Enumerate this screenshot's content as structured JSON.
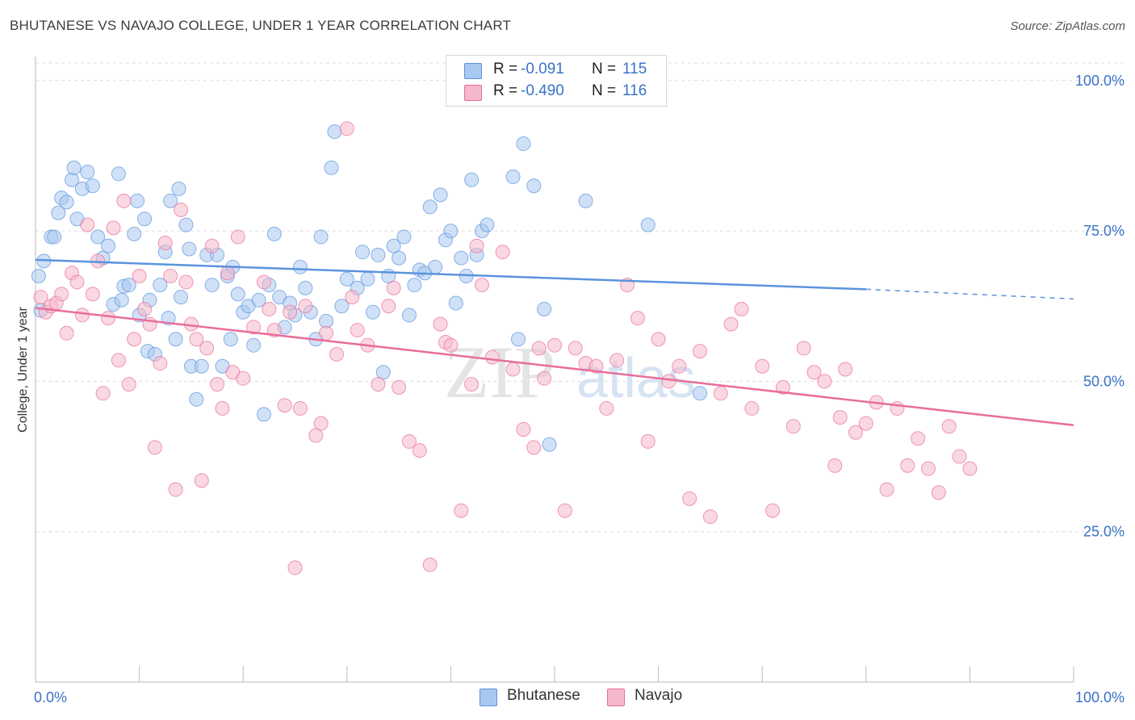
{
  "header": {
    "title": "BHUTANESE VS NAVAJO COLLEGE, UNDER 1 YEAR CORRELATION CHART",
    "source": "Source: ZipAtlas.com"
  },
  "watermark": {
    "part1": "ZIP",
    "part2": "atlas"
  },
  "legend": {
    "rows": [
      {
        "r_label": "R =",
        "r_value": "-0.091",
        "n_label": "N =",
        "n_value": "115",
        "color": "#a9c8f0"
      },
      {
        "r_label": "R =",
        "r_value": "-0.490",
        "n_label": "N =",
        "n_value": "116",
        "color": "#f5b8cb"
      }
    ]
  },
  "bottom_legend": {
    "items": [
      {
        "label": "Bhutanese",
        "color": "#a9c8f0"
      },
      {
        "label": "Navajo",
        "color": "#f5b8cb"
      }
    ]
  },
  "chart_data": {
    "type": "scatter",
    "title": "BHUTANESE VS NAVAJO COLLEGE, UNDER 1 YEAR CORRELATION CHART",
    "xlabel": "",
    "ylabel": "College, Under 1 year",
    "xlim": [
      0,
      100
    ],
    "ylim": [
      0,
      104
    ],
    "x_tick_labels": [
      "0.0%",
      "100.0%"
    ],
    "y_ticks": [
      25,
      50,
      75,
      100
    ],
    "y_tick_labels": [
      "25.0%",
      "50.0%",
      "75.0%",
      "100.0%"
    ],
    "grid": "dashed horizontal",
    "legend_position": "top-center",
    "series": [
      {
        "name": "Bhutanese",
        "color": "#5b93dd",
        "fill": "#a9c8f0",
        "trend": {
          "x0": 0,
          "y0": 70.2,
          "x1": 80,
          "y1": 65.3,
          "dashed_to": 100,
          "dashed_y": 63.7
        },
        "points": [
          [
            0.3,
            67.5
          ],
          [
            0.5,
            61.8
          ],
          [
            0.8,
            70
          ],
          [
            1.5,
            74
          ],
          [
            1.8,
            74
          ],
          [
            2.2,
            78
          ],
          [
            2.5,
            80.5
          ],
          [
            3,
            79.8
          ],
          [
            3.5,
            83.5
          ],
          [
            3.7,
            85.5
          ],
          [
            4,
            77
          ],
          [
            4.5,
            82
          ],
          [
            5,
            84.8
          ],
          [
            5.5,
            82.5
          ],
          [
            6,
            74
          ],
          [
            6.5,
            70.5
          ],
          [
            7,
            72.5
          ],
          [
            7.5,
            62.8
          ],
          [
            8,
            84.5
          ],
          [
            8.3,
            63.5
          ],
          [
            8.5,
            65.8
          ],
          [
            9,
            66
          ],
          [
            9.5,
            74.5
          ],
          [
            9.8,
            80
          ],
          [
            10,
            61
          ],
          [
            10.5,
            77
          ],
          [
            10.8,
            55
          ],
          [
            11,
            63.5
          ],
          [
            11.5,
            54.5
          ],
          [
            12,
            66
          ],
          [
            12.5,
            71.5
          ],
          [
            12.8,
            60.5
          ],
          [
            13,
            80
          ],
          [
            13.5,
            57
          ],
          [
            13.8,
            82
          ],
          [
            14,
            64
          ],
          [
            14.5,
            76
          ],
          [
            14.8,
            72
          ],
          [
            15,
            52.5
          ],
          [
            15.5,
            47
          ],
          [
            16,
            52.5
          ],
          [
            16.5,
            71
          ],
          [
            17,
            66
          ],
          [
            17.5,
            71
          ],
          [
            18,
            52.5
          ],
          [
            18.5,
            67.5
          ],
          [
            18.8,
            57
          ],
          [
            19,
            69
          ],
          [
            19.5,
            64.5
          ],
          [
            20,
            61.5
          ],
          [
            20.5,
            62.5
          ],
          [
            21,
            56
          ],
          [
            21.5,
            63.5
          ],
          [
            22,
            44.5
          ],
          [
            22.5,
            66
          ],
          [
            23,
            74.5
          ],
          [
            23.5,
            64
          ],
          [
            24,
            59
          ],
          [
            24.5,
            63
          ],
          [
            25,
            61
          ],
          [
            25.5,
            69
          ],
          [
            26,
            65.5
          ],
          [
            26.5,
            61.5
          ],
          [
            27,
            57
          ],
          [
            27.5,
            74
          ],
          [
            28,
            60
          ],
          [
            28.5,
            85.5
          ],
          [
            28.8,
            91.5
          ],
          [
            29.5,
            62.5
          ],
          [
            30,
            67
          ],
          [
            31,
            65.5
          ],
          [
            31.5,
            71.5
          ],
          [
            32,
            67
          ],
          [
            32.5,
            61.5
          ],
          [
            33,
            71
          ],
          [
            33.5,
            51.5
          ],
          [
            34,
            67.5
          ],
          [
            34.5,
            72.5
          ],
          [
            35,
            70.5
          ],
          [
            35.5,
            74
          ],
          [
            36,
            61
          ],
          [
            36.5,
            66
          ],
          [
            37,
            68.5
          ],
          [
            37.5,
            68
          ],
          [
            38,
            79
          ],
          [
            38.5,
            69
          ],
          [
            39,
            81
          ],
          [
            39.5,
            73.5
          ],
          [
            40,
            75
          ],
          [
            40.5,
            63
          ],
          [
            41,
            70.5
          ],
          [
            41.5,
            67.5
          ],
          [
            42,
            83.5
          ],
          [
            42.5,
            71
          ],
          [
            43,
            75
          ],
          [
            43.5,
            76
          ],
          [
            46,
            84
          ],
          [
            46.5,
            57
          ],
          [
            47,
            89.5
          ],
          [
            48,
            82.5
          ],
          [
            49,
            62
          ],
          [
            49.5,
            39.5
          ],
          [
            53,
            80
          ],
          [
            59,
            76
          ],
          [
            64,
            48
          ]
        ]
      },
      {
        "name": "Navajo",
        "color": "#e86e9a",
        "fill": "#f5b8cb",
        "trend": {
          "x0": 0,
          "y0": 62.2,
          "x1": 100,
          "y1": 42.7
        },
        "points": [
          [
            0.5,
            64
          ],
          [
            1,
            61.5
          ],
          [
            1.5,
            62.5
          ],
          [
            2,
            63
          ],
          [
            2.5,
            64.5
          ],
          [
            3,
            58
          ],
          [
            3.5,
            68
          ],
          [
            4,
            66.5
          ],
          [
            4.5,
            61
          ],
          [
            5,
            76
          ],
          [
            5.5,
            64.5
          ],
          [
            6,
            70
          ],
          [
            6.5,
            48
          ],
          [
            7,
            60.5
          ],
          [
            7.5,
            75.5
          ],
          [
            8,
            53.5
          ],
          [
            8.5,
            80
          ],
          [
            9,
            49.5
          ],
          [
            9.5,
            57
          ],
          [
            10,
            67.5
          ],
          [
            10.5,
            62
          ],
          [
            11,
            59.5
          ],
          [
            11.5,
            39
          ],
          [
            12,
            53
          ],
          [
            12.5,
            73
          ],
          [
            13,
            67.5
          ],
          [
            13.5,
            32
          ],
          [
            14,
            78.5
          ],
          [
            14.5,
            66.5
          ],
          [
            15,
            59.5
          ],
          [
            15.5,
            57
          ],
          [
            16,
            33.5
          ],
          [
            16.5,
            55.5
          ],
          [
            17,
            72.5
          ],
          [
            17.5,
            49.5
          ],
          [
            18,
            45.5
          ],
          [
            18.5,
            68
          ],
          [
            19,
            51.5
          ],
          [
            19.5,
            74
          ],
          [
            20,
            50.5
          ],
          [
            21,
            59
          ],
          [
            22,
            66.5
          ],
          [
            22.5,
            62
          ],
          [
            23,
            58.5
          ],
          [
            24,
            46
          ],
          [
            24.5,
            61.5
          ],
          [
            25,
            19
          ],
          [
            25.5,
            45.5
          ],
          [
            26,
            62.5
          ],
          [
            27,
            41
          ],
          [
            27.5,
            43
          ],
          [
            28,
            58
          ],
          [
            29,
            54.5
          ],
          [
            30,
            92
          ],
          [
            30.5,
            64
          ],
          [
            31,
            58.5
          ],
          [
            32,
            56
          ],
          [
            33,
            49.5
          ],
          [
            34,
            62.5
          ],
          [
            34.5,
            65.5
          ],
          [
            35,
            49
          ],
          [
            36,
            40
          ],
          [
            37,
            38.5
          ],
          [
            38,
            19.5
          ],
          [
            39,
            59.5
          ],
          [
            39.5,
            56.5
          ],
          [
            40,
            56
          ],
          [
            41,
            28.5
          ],
          [
            42,
            49.5
          ],
          [
            42.5,
            72.5
          ],
          [
            43,
            66
          ],
          [
            44,
            54
          ],
          [
            45,
            71.5
          ],
          [
            46,
            52
          ],
          [
            47,
            42
          ],
          [
            48,
            39
          ],
          [
            48.5,
            55.5
          ],
          [
            49,
            50.5
          ],
          [
            50,
            56
          ],
          [
            51,
            28.5
          ],
          [
            52,
            55.5
          ],
          [
            53,
            53
          ],
          [
            54,
            52.5
          ],
          [
            55,
            45.5
          ],
          [
            56,
            53.5
          ],
          [
            57,
            66
          ],
          [
            58,
            60.5
          ],
          [
            59,
            40
          ],
          [
            60,
            57
          ],
          [
            61,
            50
          ],
          [
            62,
            52.5
          ],
          [
            63,
            30.5
          ],
          [
            64,
            55
          ],
          [
            65,
            27.5
          ],
          [
            66,
            48
          ],
          [
            67,
            59.5
          ],
          [
            68,
            62
          ],
          [
            69,
            45.5
          ],
          [
            70,
            52.5
          ],
          [
            71,
            28.5
          ],
          [
            72,
            49
          ],
          [
            73,
            42.5
          ],
          [
            74,
            55.5
          ],
          [
            75,
            51.5
          ],
          [
            76,
            50
          ],
          [
            77,
            36
          ],
          [
            77.5,
            44
          ],
          [
            78,
            52
          ],
          [
            79,
            41.5
          ],
          [
            80,
            43
          ],
          [
            81,
            46.5
          ],
          [
            82,
            32
          ],
          [
            83,
            45.5
          ],
          [
            84,
            36
          ],
          [
            85,
            40.5
          ],
          [
            86,
            35.5
          ],
          [
            87,
            31.5
          ],
          [
            88,
            42.5
          ],
          [
            89,
            37.5
          ],
          [
            90,
            35.5
          ]
        ]
      }
    ]
  }
}
